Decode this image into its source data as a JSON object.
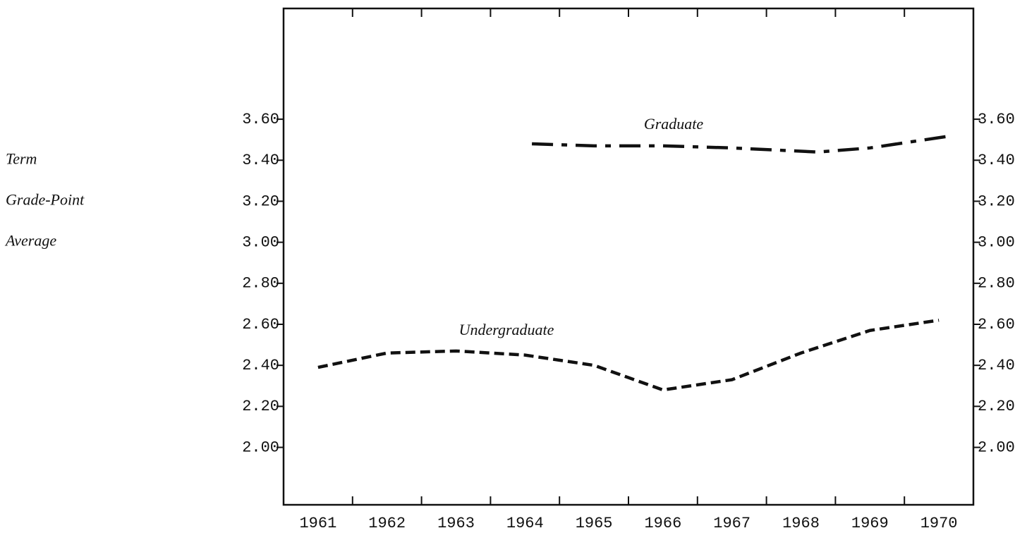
{
  "chart_data": {
    "type": "line",
    "ylabel": [
      "Term",
      "Grade-Point",
      "Average"
    ],
    "xticks": [
      1961,
      1962,
      1963,
      1964,
      1965,
      1966,
      1967,
      1968,
      1969,
      1970
    ],
    "xtick_marks": [
      1961.5,
      1962.5,
      1963.5,
      1964.5,
      1965.5,
      1966.5,
      1967.5,
      1968.5,
      1969.5
    ],
    "xlim": [
      1960.5,
      1970.5
    ],
    "ylim": [
      1.72,
      4.14
    ],
    "yticks": [
      {
        "value": 2.0,
        "label": "2.00"
      },
      {
        "value": 2.2,
        "label": "2.20"
      },
      {
        "value": 2.4,
        "label": "2.40"
      },
      {
        "value": 2.6,
        "label": "2.60"
      },
      {
        "value": 2.8,
        "label": "2.80"
      },
      {
        "value": 3.0,
        "label": "3.00"
      },
      {
        "value": 3.2,
        "label": "3.20"
      },
      {
        "value": 3.4,
        "label": "3.40"
      },
      {
        "value": 3.6,
        "label": "3.60"
      }
    ],
    "series": [
      {
        "name": "Graduate",
        "color": "#111111",
        "dash": "dash-dot",
        "x": [
          1964.1,
          1965,
          1966,
          1967,
          1968.25,
          1969,
          1970.2
        ],
        "values": [
          3.48,
          3.47,
          3.47,
          3.46,
          3.44,
          3.46,
          3.52
        ]
      },
      {
        "name": "Undergraduate",
        "color": "#111111",
        "dash": "dashed",
        "x": [
          1961,
          1962,
          1963,
          1964,
          1965,
          1966,
          1967,
          1968,
          1969,
          1970
        ],
        "values": [
          2.39,
          2.46,
          2.47,
          2.45,
          2.4,
          2.28,
          2.33,
          2.46,
          2.57,
          2.62
        ]
      }
    ]
  }
}
